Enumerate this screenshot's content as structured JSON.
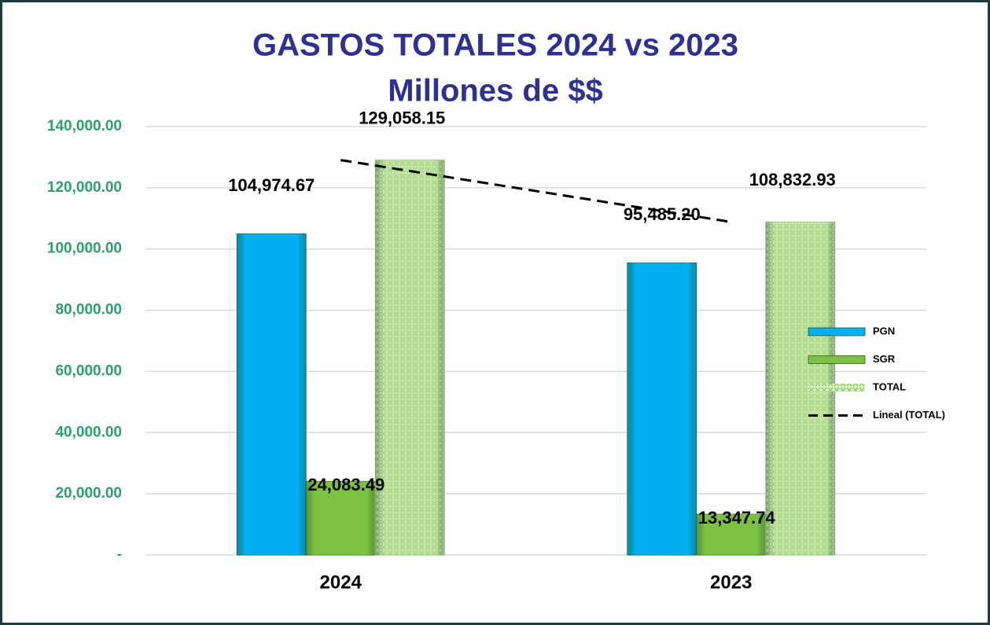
{
  "chart_data": {
    "type": "bar",
    "title": "GASTOS TOTALES 2024 vs 2023",
    "subtitle": "Millones de $$",
    "categories": [
      "2024",
      "2023"
    ],
    "series": [
      {
        "name": "PGN",
        "color": "#00b0f0",
        "values": [
          104974.67,
          95485.2
        ],
        "value_labels": [
          "104,974.67",
          "95,485.20"
        ]
      },
      {
        "name": "SGR",
        "color": "#7cc142",
        "values": [
          24083.49,
          13347.74
        ],
        "value_labels": [
          "24,083.49",
          "13,347.74"
        ]
      },
      {
        "name": "TOTAL",
        "color": "#b5dd8f",
        "pattern": true,
        "values": [
          129058.15,
          108832.93
        ],
        "value_labels": [
          "129,058.15",
          "108,832.93"
        ]
      }
    ],
    "trendline": {
      "name": "Lineal (TOTAL)",
      "series": 2,
      "color": "#000000",
      "dashed": true
    },
    "ylim": [
      0,
      140000
    ],
    "yticks": [
      {
        "value": 0,
        "label": "-"
      },
      {
        "value": 20000,
        "label": "20,000.00"
      },
      {
        "value": 40000,
        "label": "40,000.00"
      },
      {
        "value": 60000,
        "label": "60,000.00"
      },
      {
        "value": 80000,
        "label": "80,000.00"
      },
      {
        "value": 100000,
        "label": "100,000.00"
      },
      {
        "value": 120000,
        "label": "120,000.00"
      },
      {
        "value": 140000,
        "label": "140,000.00"
      }
    ],
    "grid": true,
    "legend": "right"
  }
}
